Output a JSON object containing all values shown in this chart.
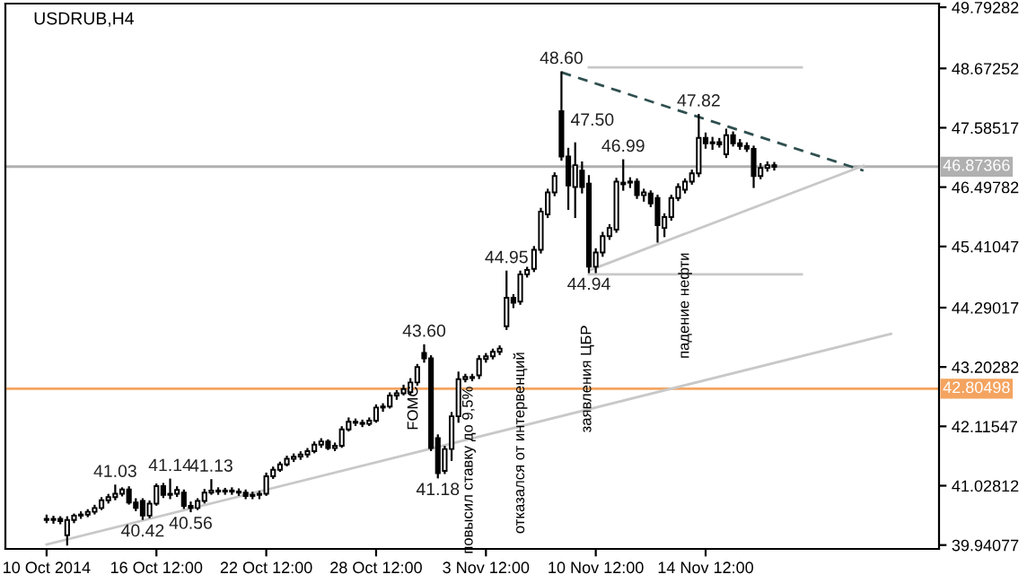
{
  "chart_data": {
    "type": "candlestick",
    "title": "USDRUB,H4",
    "categories": [
      "10 Oct 2014",
      null,
      null,
      null,
      null,
      null,
      null,
      null,
      null,
      null,
      null,
      null,
      null,
      null,
      null,
      null,
      "16 Oct 12:00",
      null,
      null,
      null,
      null,
      null,
      null,
      null,
      null,
      null,
      null,
      null,
      null,
      null,
      null,
      null,
      "22 Oct 12:00",
      null,
      null,
      null,
      null,
      null,
      null,
      null,
      null,
      null,
      null,
      null,
      null,
      null,
      null,
      null,
      "28 Oct 12:00",
      null,
      null,
      null,
      null,
      null,
      null,
      null,
      null,
      null,
      null,
      null,
      null,
      null,
      null,
      null,
      "3 Nov 12:00",
      null,
      null,
      null,
      null,
      null,
      null,
      null,
      null,
      null,
      null,
      null,
      null,
      null,
      null,
      null,
      "10 Nov 12:00",
      null,
      null,
      null,
      null,
      null,
      null,
      null,
      null,
      null,
      null,
      null,
      null,
      null,
      null,
      null,
      "14 Nov 12:00",
      null,
      null,
      null,
      null,
      null,
      null,
      null,
      null,
      null,
      null,
      null,
      null,
      null,
      null,
      null,
      null,
      null,
      null,
      null,
      null,
      null,
      null,
      null,
      null,
      null,
      null,
      null
    ],
    "ohlc": [
      [
        40.42,
        40.48,
        40.36,
        40.4
      ],
      [
        40.4,
        40.46,
        40.35,
        40.42
      ],
      [
        40.42,
        40.45,
        40.34,
        40.38
      ],
      [
        40.12,
        40.45,
        39.95,
        40.4
      ],
      [
        40.4,
        40.5,
        40.36,
        40.48
      ],
      [
        40.48,
        40.54,
        40.44,
        40.5
      ],
      [
        40.5,
        40.58,
        40.47,
        40.55
      ],
      [
        40.55,
        40.66,
        40.52,
        40.62
      ],
      [
        40.62,
        40.8,
        40.6,
        40.76
      ],
      [
        40.76,
        40.86,
        40.72,
        40.82
      ],
      [
        40.82,
        41.03,
        40.78,
        40.88
      ],
      [
        40.88,
        40.98,
        40.85,
        40.96
      ],
      [
        40.96,
        41.0,
        40.7,
        40.72
      ],
      [
        40.72,
        40.78,
        40.58,
        40.62
      ],
      [
        40.75,
        40.78,
        40.42,
        40.48
      ],
      [
        40.48,
        40.74,
        40.45,
        40.7
      ],
      [
        40.7,
        41.05,
        40.68,
        41.02
      ],
      [
        41.02,
        41.06,
        40.82,
        40.86
      ],
      [
        40.86,
        41.14,
        40.8,
        40.88
      ],
      [
        40.88,
        41.0,
        40.84,
        40.95
      ],
      [
        40.9,
        40.94,
        40.62,
        40.66
      ],
      [
        40.66,
        40.72,
        40.56,
        40.62
      ],
      [
        40.62,
        40.78,
        40.6,
        40.75
      ],
      [
        40.75,
        40.95,
        40.72,
        40.9
      ],
      [
        40.9,
        41.13,
        40.88,
        40.94
      ],
      [
        40.94,
        40.98,
        40.88,
        40.92
      ],
      [
        40.92,
        40.97,
        40.88,
        40.94
      ],
      [
        40.94,
        40.98,
        40.88,
        40.92
      ],
      [
        40.92,
        40.96,
        40.86,
        40.9
      ],
      [
        40.9,
        40.94,
        40.8,
        40.84
      ],
      [
        40.84,
        40.9,
        40.8,
        40.86
      ],
      [
        40.86,
        40.92,
        40.8,
        40.88
      ],
      [
        40.88,
        41.25,
        40.86,
        41.2
      ],
      [
        41.2,
        41.36,
        41.17,
        41.32
      ],
      [
        41.32,
        41.45,
        41.3,
        41.42
      ],
      [
        41.42,
        41.56,
        41.4,
        41.52
      ],
      [
        41.52,
        41.6,
        41.48,
        41.56
      ],
      [
        41.56,
        41.64,
        41.52,
        41.6
      ],
      [
        41.6,
        41.7,
        41.56,
        41.66
      ],
      [
        41.66,
        41.82,
        41.64,
        41.78
      ],
      [
        41.78,
        41.88,
        41.74,
        41.84
      ],
      [
        41.84,
        41.86,
        41.7,
        41.72
      ],
      [
        41.72,
        41.8,
        41.68,
        41.76
      ],
      [
        41.76,
        42.1,
        41.74,
        42.06
      ],
      [
        42.06,
        42.26,
        42.04,
        42.2
      ],
      [
        42.2,
        42.24,
        42.14,
        42.18
      ],
      [
        42.18,
        42.22,
        42.12,
        42.16
      ],
      [
        42.16,
        42.26,
        42.14,
        42.22
      ],
      [
        42.22,
        42.5,
        42.2,
        42.46
      ],
      [
        42.46,
        42.52,
        42.4,
        42.48
      ],
      [
        42.48,
        42.72,
        42.46,
        42.68
      ],
      [
        42.68,
        42.76,
        42.62,
        42.72
      ],
      [
        42.72,
        42.86,
        42.7,
        42.8
      ],
      [
        42.74,
        42.98,
        42.7,
        42.92
      ],
      [
        42.92,
        43.24,
        42.88,
        43.2
      ],
      [
        43.46,
        43.6,
        43.3,
        43.36
      ],
      [
        43.36,
        43.4,
        41.68,
        41.72
      ],
      [
        41.9,
        41.95,
        41.18,
        41.26
      ],
      [
        41.3,
        41.74,
        41.26,
        41.7
      ],
      [
        41.7,
        42.36,
        41.5,
        42.3
      ],
      [
        42.3,
        43.1,
        42.2,
        42.98
      ],
      [
        42.98,
        43.06,
        42.94,
        43.02
      ],
      [
        43.02,
        43.06,
        42.96,
        43.0
      ],
      [
        43.05,
        43.4,
        43.0,
        43.35
      ],
      [
        43.35,
        43.44,
        43.3,
        43.4
      ],
      [
        43.4,
        43.52,
        43.36,
        43.48
      ],
      [
        43.48,
        43.58,
        43.44,
        43.54
      ],
      [
        43.95,
        44.95,
        43.9,
        44.47
      ],
      [
        44.47,
        44.52,
        44.3,
        44.38
      ],
      [
        44.4,
        44.95,
        44.36,
        44.9
      ],
      [
        44.9,
        45.02,
        44.86,
        44.98
      ],
      [
        45.0,
        45.4,
        44.96,
        45.35
      ],
      [
        45.35,
        46.1,
        45.3,
        46.05
      ],
      [
        46.0,
        46.45,
        45.95,
        46.4
      ],
      [
        46.4,
        46.75,
        46.35,
        46.7
      ],
      [
        47.89,
        48.6,
        47.0,
        47.06
      ],
      [
        47.06,
        47.2,
        46.1,
        46.53
      ],
      [
        46.5,
        47.3,
        45.95,
        46.9
      ],
      [
        46.8,
        46.95,
        46.4,
        46.5
      ],
      [
        46.56,
        46.7,
        44.94,
        45.04
      ],
      [
        45.04,
        45.36,
        44.94,
        45.3
      ],
      [
        45.3,
        45.66,
        45.24,
        45.6
      ],
      [
        45.6,
        45.8,
        45.55,
        45.75
      ],
      [
        45.72,
        46.65,
        45.68,
        46.6
      ],
      [
        46.55,
        46.99,
        46.45,
        46.58
      ],
      [
        46.58,
        46.66,
        46.5,
        46.6
      ],
      [
        46.6,
        46.64,
        46.3,
        46.35
      ],
      [
        46.35,
        46.45,
        46.25,
        46.4
      ],
      [
        46.38,
        46.42,
        46.15,
        46.2
      ],
      [
        46.3,
        46.34,
        45.5,
        45.8
      ],
      [
        45.75,
        46.0,
        45.6,
        45.95
      ],
      [
        45.95,
        46.34,
        45.9,
        46.3
      ],
      [
        46.3,
        46.55,
        46.26,
        46.5
      ],
      [
        46.45,
        46.64,
        46.4,
        46.6
      ],
      [
        46.6,
        46.8,
        46.56,
        46.75
      ],
      [
        46.75,
        47.82,
        46.7,
        47.4
      ],
      [
        47.4,
        47.48,
        47.22,
        47.3
      ],
      [
        47.3,
        47.4,
        47.2,
        47.32
      ],
      [
        47.32,
        47.38,
        47.24,
        47.28
      ],
      [
        47.1,
        47.55,
        47.05,
        47.45
      ],
      [
        47.45,
        47.5,
        47.26,
        47.3
      ],
      [
        47.3,
        47.36,
        47.2,
        47.25
      ],
      [
        47.25,
        47.3,
        47.16,
        47.2
      ],
      [
        47.2,
        47.24,
        46.5,
        46.7
      ],
      [
        46.7,
        46.92,
        46.66,
        46.85
      ],
      [
        46.85,
        46.95,
        46.8,
        46.9
      ],
      [
        46.9,
        46.94,
        46.82,
        46.87
      ],
      null,
      null,
      null,
      null,
      null,
      null,
      null,
      null,
      null,
      null,
      null,
      null,
      null,
      null,
      null,
      null,
      null
    ],
    "series": [
      {
        "type": "line",
        "color": "#c8c8c8",
        "values": [
          39.95,
          null,
          null,
          null,
          null,
          null,
          null,
          null,
          null,
          null,
          null,
          null,
          null,
          null,
          null,
          null,
          null,
          null,
          null,
          null,
          null,
          null,
          null,
          null,
          null,
          null,
          null,
          null,
          null,
          null,
          null,
          null,
          null,
          null,
          null,
          null,
          null,
          null,
          null,
          null,
          null,
          null,
          null,
          null,
          null,
          null,
          null,
          null,
          null,
          null,
          null,
          null,
          null,
          null,
          null,
          null,
          null,
          null,
          null,
          null,
          null,
          null,
          null,
          null,
          null,
          null,
          null,
          null,
          null,
          null,
          null,
          null,
          null,
          null,
          null,
          null,
          null,
          null,
          null,
          null,
          null,
          null,
          null,
          null,
          null,
          null,
          null,
          null,
          null,
          null,
          null,
          null,
          null,
          null,
          null,
          null,
          null,
          null,
          null,
          null,
          null,
          null,
          null,
          null,
          null,
          null,
          null,
          null,
          null,
          null,
          null,
          null,
          null,
          null,
          null,
          null,
          null,
          null,
          null,
          null,
          null,
          null,
          null,
          43.81
        ]
      },
      {
        "type": "line",
        "color": "#2f4f4f",
        "line_style": "dashed",
        "values": [
          null,
          null,
          null,
          null,
          null,
          null,
          null,
          null,
          null,
          null,
          null,
          null,
          null,
          null,
          null,
          null,
          null,
          null,
          null,
          null,
          null,
          null,
          null,
          null,
          null,
          null,
          null,
          null,
          null,
          null,
          null,
          null,
          null,
          null,
          null,
          null,
          null,
          null,
          null,
          null,
          null,
          null,
          null,
          null,
          null,
          null,
          null,
          null,
          null,
          null,
          null,
          null,
          null,
          null,
          null,
          null,
          null,
          null,
          null,
          null,
          null,
          null,
          null,
          null,
          null,
          null,
          null,
          null,
          null,
          null,
          null,
          null,
          null,
          null,
          null,
          48.6,
          null,
          null,
          null,
          null,
          null,
          null,
          null,
          null,
          null,
          null,
          null,
          null,
          null,
          null,
          null,
          null,
          null,
          null,
          null,
          null,
          null,
          null,
          null,
          null,
          null,
          null,
          null,
          null,
          null,
          null,
          null,
          null,
          null,
          null,
          null,
          null,
          null,
          null,
          null,
          null,
          null,
          null,
          null,
          46.8,
          null,
          null,
          null,
          null
        ]
      },
      {
        "type": "line",
        "color": "#c8c8c8",
        "values": [
          null,
          null,
          null,
          null,
          null,
          null,
          null,
          null,
          null,
          null,
          null,
          null,
          null,
          null,
          null,
          null,
          null,
          null,
          null,
          null,
          null,
          null,
          null,
          null,
          null,
          null,
          null,
          null,
          null,
          null,
          null,
          null,
          null,
          null,
          null,
          null,
          null,
          null,
          null,
          null,
          null,
          null,
          null,
          null,
          null,
          null,
          null,
          null,
          null,
          null,
          null,
          null,
          null,
          null,
          null,
          null,
          null,
          null,
          null,
          null,
          null,
          null,
          null,
          null,
          null,
          null,
          null,
          null,
          null,
          null,
          null,
          null,
          null,
          null,
          null,
          null,
          null,
          null,
          null,
          44.97,
          null,
          null,
          null,
          null,
          null,
          null,
          null,
          null,
          null,
          null,
          null,
          null,
          null,
          null,
          null,
          null,
          null,
          null,
          null,
          null,
          null,
          null,
          null,
          null,
          null,
          null,
          null,
          null,
          null,
          null,
          null,
          null,
          null,
          null,
          null,
          null,
          null,
          null,
          null,
          46.89,
          null,
          null,
          null,
          null
        ]
      },
      {
        "type": "line",
        "color": "#c8c8c8",
        "values": [
          null,
          null,
          null,
          null,
          null,
          null,
          null,
          null,
          null,
          null,
          null,
          null,
          null,
          null,
          null,
          null,
          null,
          null,
          null,
          null,
          null,
          null,
          null,
          null,
          null,
          null,
          null,
          null,
          null,
          null,
          null,
          null,
          null,
          null,
          null,
          null,
          null,
          null,
          null,
          null,
          null,
          null,
          null,
          null,
          null,
          null,
          null,
          null,
          null,
          null,
          null,
          null,
          null,
          null,
          null,
          null,
          null,
          null,
          null,
          null,
          null,
          null,
          null,
          null,
          null,
          null,
          null,
          null,
          null,
          null,
          null,
          null,
          null,
          null,
          null,
          null,
          null,
          null,
          null,
          48.69,
          null,
          null,
          null,
          null,
          null,
          null,
          null,
          null,
          null,
          null,
          null,
          null,
          null,
          null,
          null,
          null,
          null,
          null,
          null,
          null,
          null,
          null,
          null,
          null,
          null,
          null,
          null,
          null,
          null,
          null,
          48.69,
          null,
          null,
          null,
          null,
          null,
          null,
          null,
          null,
          null,
          null,
          null,
          null,
          null
        ]
      },
      {
        "type": "line",
        "color": "#c8c8c8",
        "values": [
          null,
          null,
          null,
          null,
          null,
          null,
          null,
          null,
          null,
          null,
          null,
          null,
          null,
          null,
          null,
          null,
          null,
          null,
          null,
          null,
          null,
          null,
          null,
          null,
          null,
          null,
          null,
          null,
          null,
          null,
          null,
          null,
          null,
          null,
          null,
          null,
          null,
          null,
          null,
          null,
          null,
          null,
          null,
          null,
          null,
          null,
          null,
          null,
          null,
          null,
          null,
          null,
          null,
          null,
          null,
          null,
          null,
          null,
          null,
          null,
          null,
          null,
          null,
          null,
          null,
          null,
          null,
          null,
          null,
          null,
          null,
          null,
          null,
          null,
          null,
          null,
          null,
          null,
          null,
          44.9,
          null,
          null,
          null,
          null,
          null,
          null,
          null,
          null,
          null,
          null,
          null,
          null,
          null,
          null,
          null,
          null,
          null,
          null,
          null,
          null,
          null,
          null,
          null,
          null,
          null,
          null,
          null,
          null,
          null,
          null,
          44.9,
          null,
          null,
          null,
          null,
          null,
          null,
          null,
          null,
          null,
          null,
          null,
          null,
          null
        ]
      }
    ],
    "ylim": [
      39.87,
      49.86
    ],
    "yticks": [
      39.94077,
      41.02812,
      42.11547,
      43.20282,
      44.29017,
      45.41047,
      46.49782,
      47.58517,
      48.67252,
      49.79282
    ],
    "ref_lines": [
      {
        "axis": "y",
        "value": 46.87366,
        "label": "46.87366",
        "color": "#b0b0b0"
      },
      {
        "axis": "y",
        "value": 42.80498,
        "label": "42.80498",
        "color": "#f4a460"
      }
    ],
    "annotations": [
      {
        "text": "41.03",
        "y": 41.03
      },
      {
        "text": "40.42",
        "y": 40.42
      },
      {
        "text": "41.14",
        "y": 41.14
      },
      {
        "text": "40.56",
        "y": 40.56
      },
      {
        "text": "41.13",
        "y": 41.13
      },
      {
        "text": "43.60",
        "y": 43.6
      },
      {
        "text": "41.18",
        "y": 41.18
      },
      {
        "text": "44.95",
        "y": 44.95
      },
      {
        "text": "44.94",
        "y": 44.94
      },
      {
        "text": "48.60",
        "y": 48.6
      },
      "47.50",
      {
        "text": "46.99",
        "y": 46.99
      },
      {
        "text": "47.82",
        "y": 47.82
      },
      "FOMC",
      "повысил ставку до 9,5%",
      "отказался от интервенций",
      "заявления ЦБР",
      "падение нефти"
    ],
    "grid": false,
    "legend": false
  }
}
